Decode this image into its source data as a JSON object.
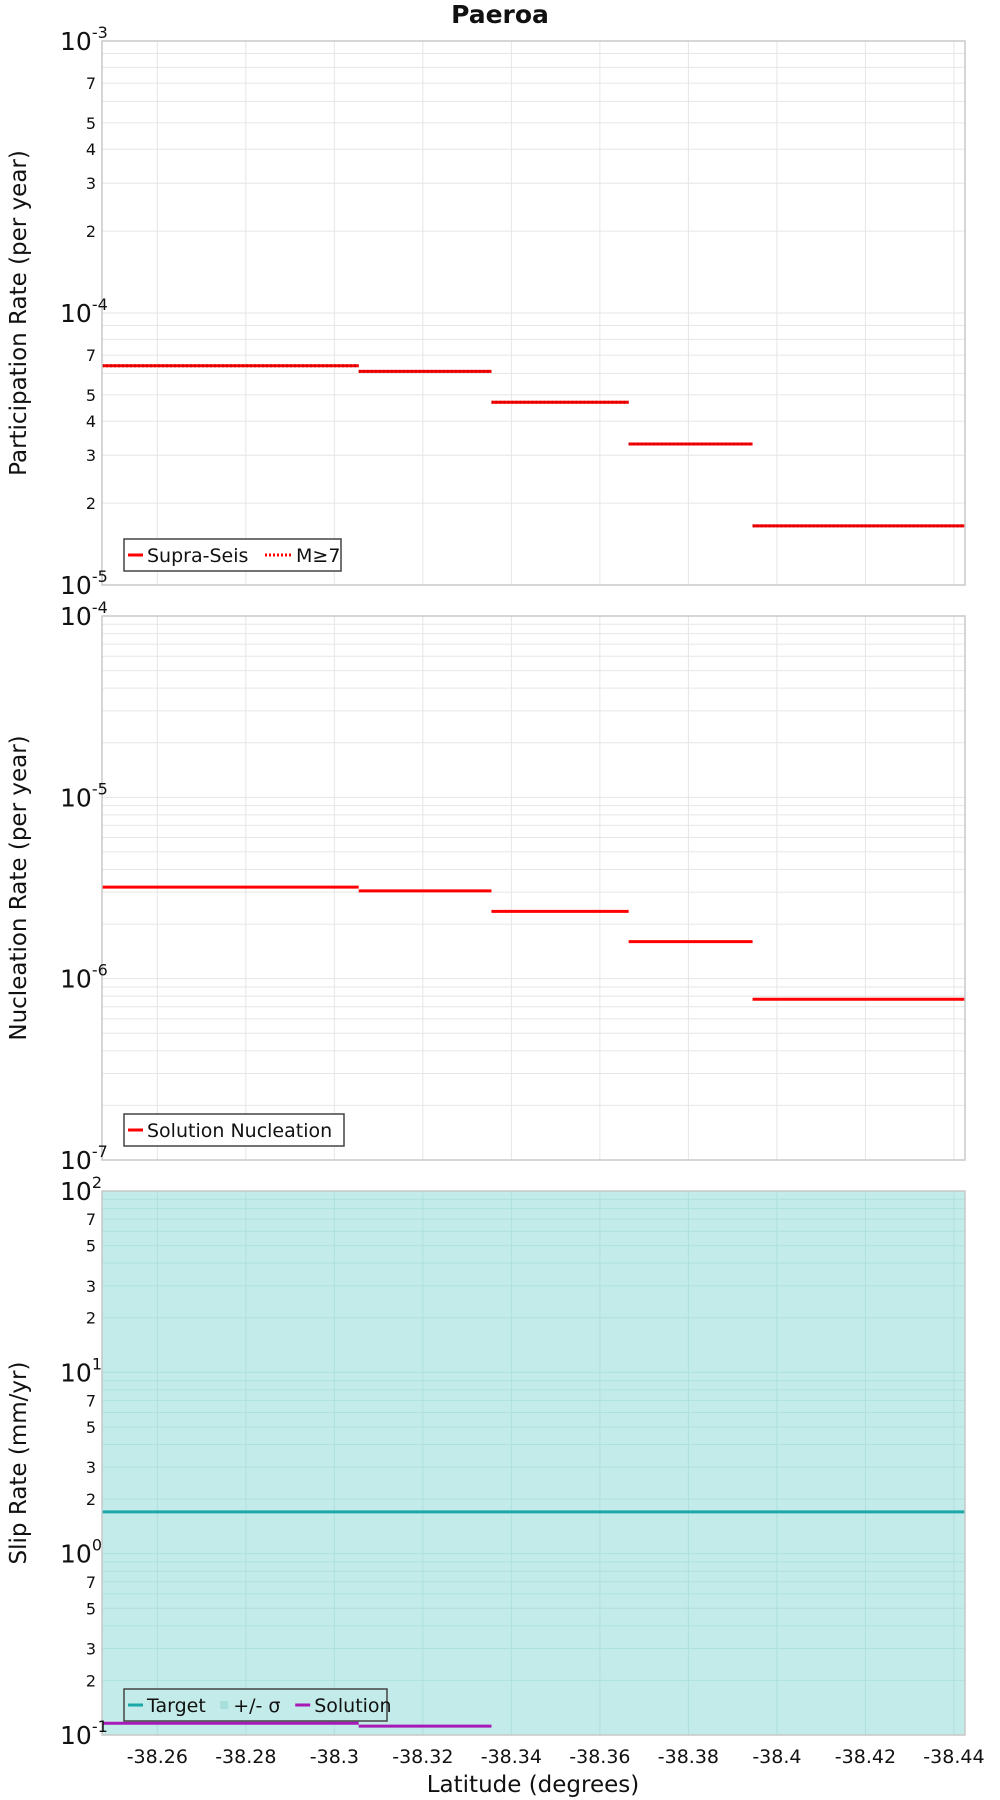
{
  "title": "Paeroa",
  "x_axis": {
    "label": "Latitude (degrees)",
    "tick_labels": [
      "-38.26",
      "-38.28",
      "-38.3",
      "-38.32",
      "-38.34",
      "-38.36",
      "-38.38",
      "-38.4",
      "-38.42",
      "-38.44"
    ]
  },
  "colors": {
    "supra_seis": "#ff0000",
    "target": "#1aa8a8",
    "sigma_band": "#c3ebe9",
    "solution_slip": "#a81ab8",
    "grid": "#e6e6e6"
  },
  "chart_data": [
    {
      "type": "line",
      "panel": "participation",
      "ylabel": "Participation Rate (per year)",
      "y_scale": "log",
      "ylim": [
        1e-05,
        0.001
      ],
      "xlim": [
        -38.2475,
        -38.4425
      ],
      "decade_ticks": [
        {
          "base": "10",
          "exp": "-5",
          "value": 1e-05
        },
        {
          "base": "10",
          "exp": "-4",
          "value": 0.0001
        },
        {
          "base": "10",
          "exp": "-3",
          "value": 0.001
        }
      ],
      "minor_tick_labels": [
        "2",
        "3",
        "4",
        "5",
        "7",
        "2",
        "3",
        "4",
        "5",
        "7"
      ],
      "legend_position": "bottom-left",
      "legend": [
        {
          "label": "Supra-Seis",
          "style": "solid"
        },
        {
          "label": "M≥7",
          "style": "dotted"
        }
      ],
      "series": [
        {
          "name": "Supra-Seis",
          "style": "solid",
          "segments": [
            {
              "x": [
                -38.2475,
                -38.3055
              ],
              "y": 6.4e-05
            },
            {
              "x": [
                -38.3055,
                -38.3355
              ],
              "y": 6.1e-05
            },
            {
              "x": [
                -38.3355,
                -38.3665
              ],
              "y": 4.7e-05
            },
            {
              "x": [
                -38.3665,
                -38.3945
              ],
              "y": 3.3e-05
            },
            {
              "x": [
                -38.3945,
                -38.4425
              ],
              "y": 1.65e-05
            }
          ]
        },
        {
          "name": "M≥7",
          "style": "dotted",
          "segments": [
            {
              "x": [
                -38.2475,
                -38.3055
              ],
              "y": 6.4e-05
            },
            {
              "x": [
                -38.3055,
                -38.3355
              ],
              "y": 6.1e-05
            },
            {
              "x": [
                -38.3355,
                -38.3665
              ],
              "y": 4.7e-05
            },
            {
              "x": [
                -38.3665,
                -38.3945
              ],
              "y": 3.3e-05
            },
            {
              "x": [
                -38.3945,
                -38.4425
              ],
              "y": 1.65e-05
            }
          ]
        }
      ]
    },
    {
      "type": "line",
      "panel": "nucleation",
      "ylabel": "Nucleation Rate (per year)",
      "y_scale": "log",
      "ylim": [
        1e-07,
        0.0001
      ],
      "xlim": [
        -38.2475,
        -38.4425
      ],
      "decade_ticks": [
        {
          "base": "10",
          "exp": "-7",
          "value": 1e-07
        },
        {
          "base": "10",
          "exp": "-6",
          "value": 1e-06
        },
        {
          "base": "10",
          "exp": "-5",
          "value": 1e-05
        },
        {
          "base": "10",
          "exp": "-4",
          "value": 0.0001
        }
      ],
      "minor_tick_labels": [],
      "legend_position": "bottom-left",
      "legend": [
        {
          "label": "Solution Nucleation",
          "style": "solid"
        }
      ],
      "series": [
        {
          "name": "Solution Nucleation",
          "style": "solid",
          "segments": [
            {
              "x": [
                -38.2475,
                -38.3055
              ],
              "y": 3.2e-06
            },
            {
              "x": [
                -38.3055,
                -38.3355
              ],
              "y": 3.05e-06
            },
            {
              "x": [
                -38.3355,
                -38.3665
              ],
              "y": 2.35e-06
            },
            {
              "x": [
                -38.3665,
                -38.3945
              ],
              "y": 1.6e-06
            },
            {
              "x": [
                -38.3945,
                -38.4425
              ],
              "y": 7.7e-07
            }
          ]
        }
      ]
    },
    {
      "type": "line",
      "panel": "slip",
      "ylabel": "Slip Rate (mm/yr)",
      "y_scale": "log",
      "ylim": [
        0.1,
        100
      ],
      "xlim": [
        -38.2475,
        -38.4425
      ],
      "decade_ticks": [
        {
          "base": "10",
          "exp": "-1",
          "value": 0.1
        },
        {
          "base": "10",
          "exp": "0",
          "value": 1
        },
        {
          "base": "10",
          "exp": "1",
          "value": 10
        },
        {
          "base": "10",
          "exp": "2",
          "value": 100
        }
      ],
      "minor_tick_labels": [
        "2",
        "3",
        "5",
        "7",
        "2",
        "3",
        "5",
        "7",
        "2",
        "3",
        "5",
        "7"
      ],
      "legend_position": "bottom-left",
      "legend": [
        {
          "label": "Target",
          "style": "line"
        },
        {
          "label": "+/- σ",
          "style": "band"
        },
        {
          "label": "Solution",
          "style": "line"
        }
      ],
      "band": {
        "x": [
          -38.2475,
          -38.4425
        ],
        "y": [
          0.1,
          100
        ]
      },
      "series": [
        {
          "name": "Target",
          "segments": [
            {
              "x": [
                -38.2475,
                -38.4425
              ],
              "y": 1.7
            }
          ]
        },
        {
          "name": "Solution",
          "segments": [
            {
              "x": [
                -38.2475,
                -38.3055
              ],
              "y": 0.116
            },
            {
              "x": [
                -38.3055,
                -38.3355
              ],
              "y": 0.112
            }
          ]
        }
      ]
    }
  ]
}
